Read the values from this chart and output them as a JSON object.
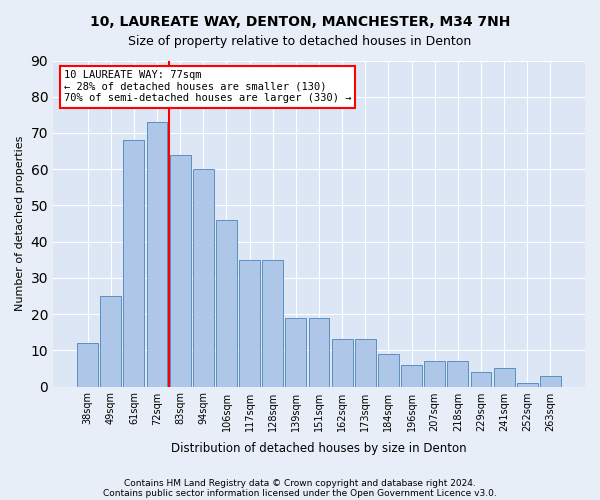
{
  "title1": "10, LAUREATE WAY, DENTON, MANCHESTER, M34 7NH",
  "title2": "Size of property relative to detached houses in Denton",
  "xlabel": "Distribution of detached houses by size in Denton",
  "ylabel": "Number of detached properties",
  "categories": [
    "38sqm",
    "49sqm",
    "61sqm",
    "72sqm",
    "83sqm",
    "94sqm",
    "106sqm",
    "117sqm",
    "128sqm",
    "139sqm",
    "151sqm",
    "162sqm",
    "173sqm",
    "184sqm",
    "196sqm",
    "207sqm",
    "218sqm",
    "229sqm",
    "241sqm",
    "252sqm",
    "263sqm"
  ],
  "bar_values": [
    12,
    25,
    68,
    73,
    64,
    60,
    46,
    35,
    35,
    19,
    19,
    13,
    13,
    9,
    6,
    7,
    7,
    4,
    5,
    1,
    3
  ],
  "bar_color": "#aec6e8",
  "bar_edgecolor": "#5a8fc0",
  "vline_color": "red",
  "annotation_line1": "10 LAUREATE WAY: 77sqm",
  "annotation_line2": "← 28% of detached houses are smaller (130)",
  "annotation_line3": "70% of semi-detached houses are larger (330) →",
  "ylim": [
    0,
    90
  ],
  "yticks": [
    0,
    10,
    20,
    30,
    40,
    50,
    60,
    70,
    80,
    90
  ],
  "footer1": "Contains HM Land Registry data © Crown copyright and database right 2024.",
  "footer2": "Contains public sector information licensed under the Open Government Licence v3.0.",
  "bg_color": "#e8eef7",
  "plot_bg_color": "#dce6f5"
}
